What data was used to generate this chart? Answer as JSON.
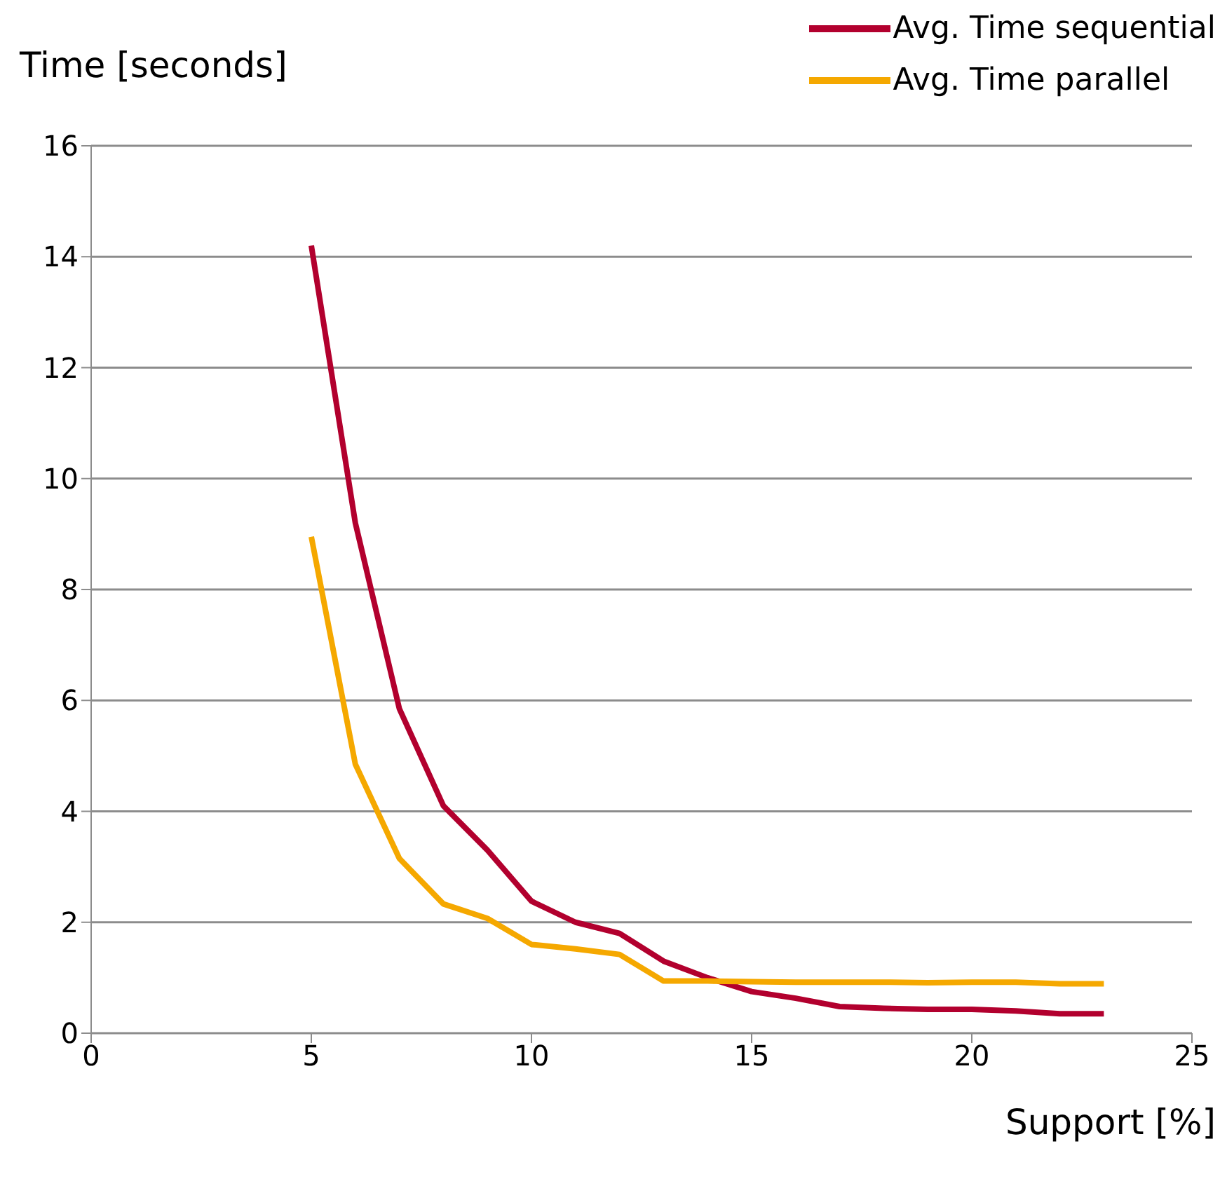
{
  "chart_data": {
    "type": "line",
    "xlabel": "Support [%]",
    "ylabel": "Time [seconds]",
    "x": [
      5,
      6,
      7,
      8,
      9,
      10,
      11,
      12,
      13,
      14,
      15,
      16,
      17,
      18,
      19,
      20,
      21,
      22,
      23
    ],
    "series": [
      {
        "name": "Avg. Time sequential",
        "color": "#b2002e",
        "values": [
          14.2,
          9.2,
          5.85,
          4.1,
          3.3,
          2.38,
          2.0,
          1.8,
          1.3,
          1.0,
          0.75,
          0.63,
          0.48,
          0.45,
          0.43,
          0.43,
          0.4,
          0.35,
          0.35
        ]
      },
      {
        "name": "Avg. Time parallel",
        "color": "#f5a800",
        "values": [
          8.95,
          4.85,
          3.15,
          2.33,
          2.07,
          1.6,
          1.52,
          1.42,
          0.94,
          0.94,
          0.93,
          0.92,
          0.92,
          0.92,
          0.91,
          0.92,
          0.92,
          0.89,
          0.89
        ]
      }
    ],
    "xlim": [
      0,
      25
    ],
    "xticks": [
      0,
      5,
      10,
      15,
      20,
      25
    ],
    "ylim": [
      0,
      16
    ],
    "yticks": [
      0,
      2,
      4,
      6,
      8,
      10,
      12,
      14,
      16
    ],
    "grid": "y",
    "legend": "top right",
    "marker": "none",
    "line_style": "solid"
  }
}
